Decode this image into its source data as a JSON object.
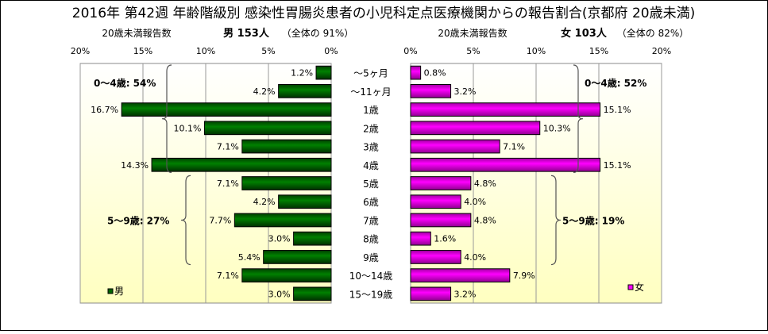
{
  "chart_data": {
    "type": "bar",
    "title": "2016年 第42週 年齢階級別 感染性胃腸炎患者の小児科定点医療機関からの報告割合(京都府 20歳未満)",
    "categories": [
      "～5ヶ月",
      "～11ヶ月",
      "1歳",
      "2歳",
      "3歳",
      "4歳",
      "5歳",
      "6歳",
      "7歳",
      "8歳",
      "9歳",
      "10～14歳",
      "15～19歳"
    ],
    "xlim": [
      0,
      20
    ],
    "ticks": [
      "0%",
      "5%",
      "10%",
      "15%",
      "20%"
    ],
    "series": [
      {
        "name": "男",
        "side": "left",
        "color": "#006400",
        "header_label": "20歳未満報告数",
        "header_count": "男 153人",
        "header_share": "（全体の 91%）",
        "values": [
          1.2,
          4.2,
          16.7,
          10.1,
          7.1,
          14.3,
          7.1,
          4.2,
          7.7,
          3.0,
          5.4,
          7.1,
          3.0
        ],
        "labels": [
          "1.2%",
          "4.2%",
          "16.7%",
          "10.1%",
          "7.1%",
          "14.3%",
          "7.1%",
          "4.2%",
          "7.7%",
          "3.0%",
          "5.4%",
          "7.1%",
          "3.0%"
        ],
        "group_annotations": [
          "0～4歳: 54%",
          "5～9歳: 27%"
        ]
      },
      {
        "name": "女",
        "side": "right",
        "color": "#FF00FF",
        "header_label": "20歳未満報告数",
        "header_count": "女 103人",
        "header_share": "（全体の 82%）",
        "values": [
          0.8,
          3.2,
          15.1,
          10.3,
          7.1,
          15.1,
          4.8,
          4.0,
          4.8,
          1.6,
          4.0,
          7.9,
          3.2
        ],
        "labels": [
          "0.8%",
          "3.2%",
          "15.1%",
          "10.3%",
          "7.1%",
          "15.1%",
          "4.8%",
          "4.0%",
          "4.8%",
          "1.6%",
          "4.0%",
          "7.9%",
          "3.2%"
        ],
        "group_annotations": [
          "0～4歳: 52%",
          "5～9歳: 19%"
        ]
      }
    ]
  }
}
